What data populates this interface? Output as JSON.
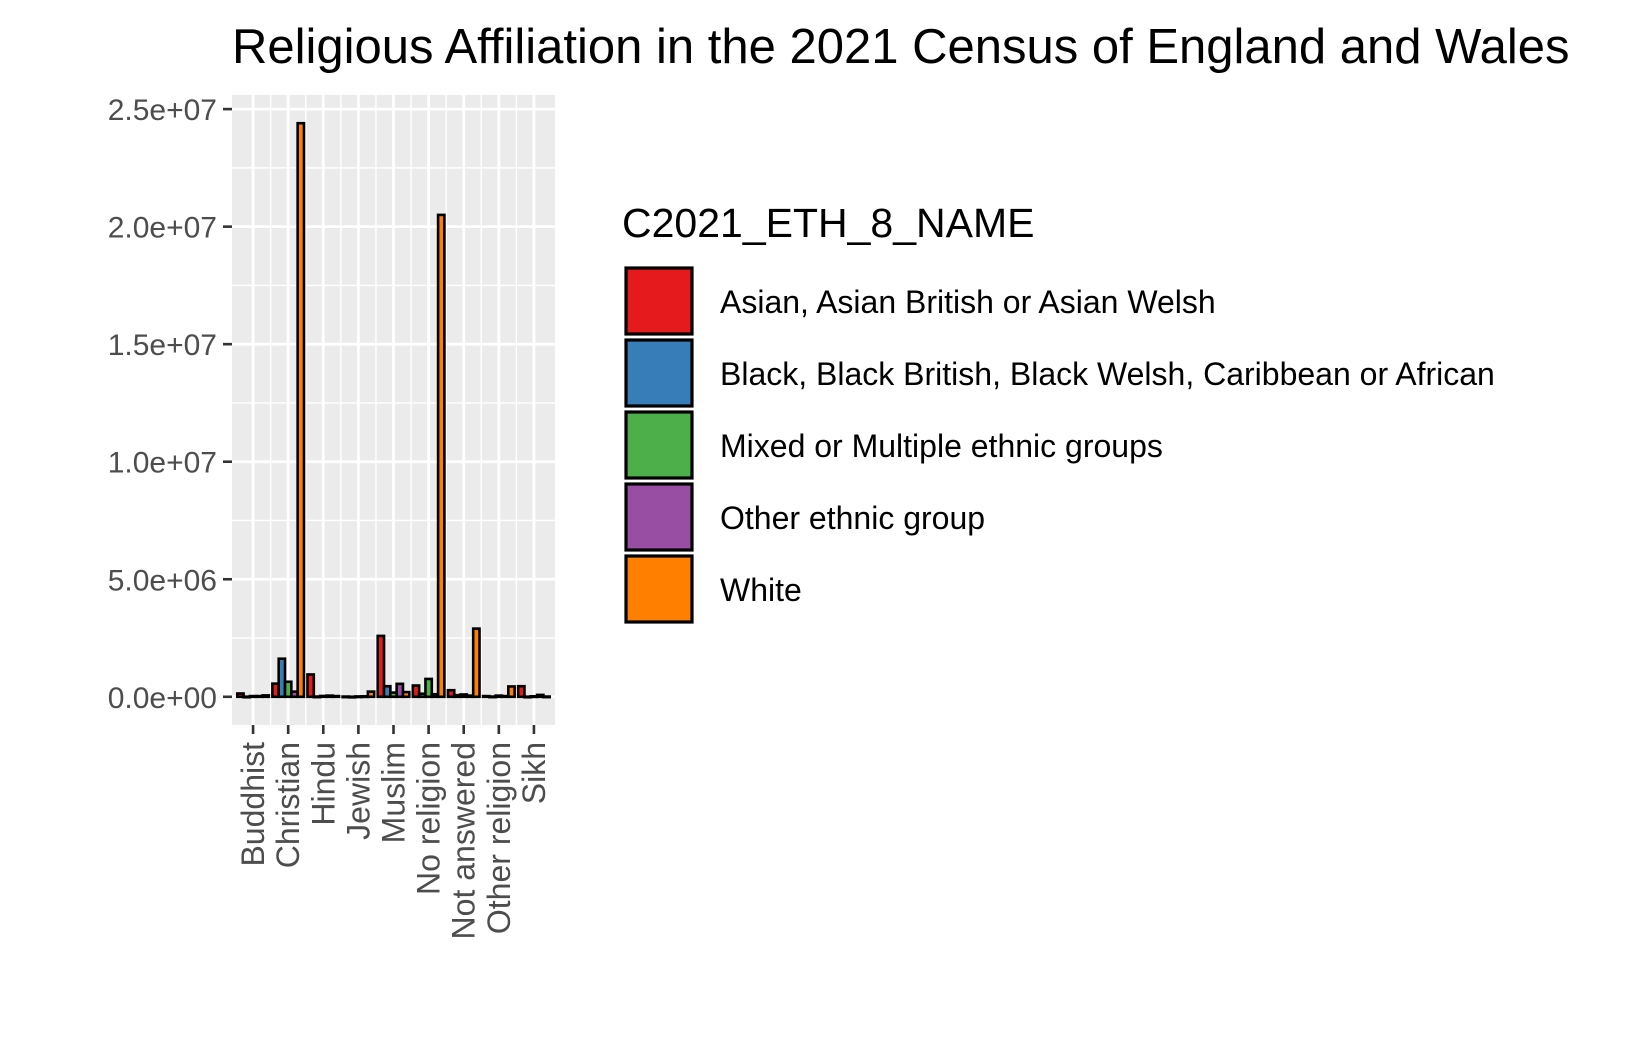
{
  "chart_data": {
    "type": "bar",
    "title": "Religious Affiliation in the 2021 Census of England and Wales",
    "xlabel": "",
    "ylabel": "",
    "ylim": [
      -1200000,
      25600000
    ],
    "y_ticks": [
      0,
      5000000,
      10000000,
      15000000,
      20000000,
      25000000
    ],
    "y_tick_labels": [
      "0.0e+00",
      "5.0e+06",
      "1.0e+07",
      "1.5e+07",
      "2.0e+07",
      "2.5e+07"
    ],
    "categories": [
      "Buddhist",
      "Christian",
      "Hindu",
      "Jewish",
      "Muslim",
      "No religion",
      "Not answered",
      "Other religion",
      "Sikh"
    ],
    "grid": true,
    "legend_position": "right",
    "legend_title": "C2021_ETH_8_NAME",
    "series": [
      {
        "name": "Asian, Asian British or Asian Welsh",
        "color": "#E41A1C",
        "values": [
          140000,
          560000,
          950000,
          10000,
          2590000,
          480000,
          280000,
          30000,
          450000
        ]
      },
      {
        "name": "Black, Black British, Black Welsh, Caribbean or African",
        "color": "#377EB8",
        "values": [
          5000,
          1620000,
          10000,
          2000,
          450000,
          130000,
          70000,
          10000,
          5000
        ]
      },
      {
        "name": "Mixed or Multiple ethnic groups",
        "color": "#4DAF4A",
        "values": [
          30000,
          640000,
          35000,
          15000,
          180000,
          760000,
          100000,
          50000,
          20000
        ]
      },
      {
        "name": "Other ethnic group",
        "color": "#984EA3",
        "values": [
          30000,
          220000,
          50000,
          20000,
          550000,
          110000,
          50000,
          30000,
          80000
        ]
      },
      {
        "name": "White",
        "color": "#FF7F00",
        "values": [
          60000,
          24400000,
          30000,
          220000,
          200000,
          20500000,
          2900000,
          440000,
          10000
        ]
      }
    ]
  }
}
